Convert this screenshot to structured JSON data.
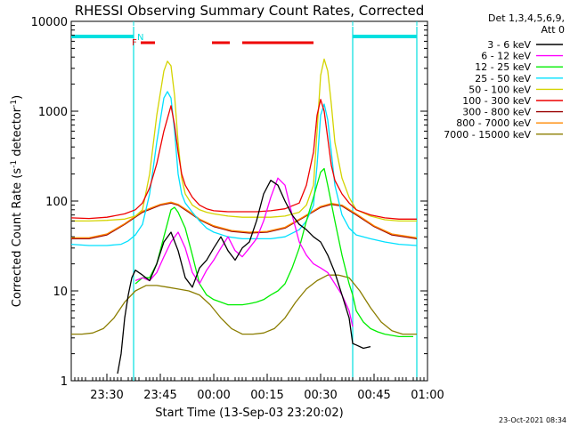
{
  "chart_data": {
    "type": "line",
    "title": "RHESSI Observing Summary Count Rates, Corrected",
    "xlabel": "Start Time (13-Sep-03 23:20:02)",
    "ylabel_parts": [
      "Corrected Count Rate (s",
      "-1",
      " detector",
      "-1",
      ")"
    ],
    "y_scale": "log",
    "xlim": [
      0,
      100
    ],
    "ylim": [
      1,
      10000
    ],
    "x_unit": "minutes after 13-Sep-03 23:20:02",
    "x_ticks": [
      {
        "pos": 10,
        "label": "23:30"
      },
      {
        "pos": 25,
        "label": "23:45"
      },
      {
        "pos": 40,
        "label": "00:00"
      },
      {
        "pos": 55,
        "label": "00:15"
      },
      {
        "pos": 70,
        "label": "00:30"
      },
      {
        "pos": 85,
        "label": "00:45"
      },
      {
        "pos": 100,
        "label": "01:00"
      }
    ],
    "y_ticks": [
      {
        "value": 1,
        "label": "1"
      },
      {
        "value": 10,
        "label": "10"
      },
      {
        "value": 100,
        "label": "100"
      },
      {
        "value": 1000,
        "label": "1000"
      },
      {
        "value": 10000,
        "label": "10000"
      }
    ],
    "legend_header": [
      "Det 1,3,4,5,6,9,",
      "Att 0"
    ],
    "legend_position": "right",
    "orbit_markers": {
      "night_label": "N",
      "flare_label": "F",
      "night_color": "#00e0e0",
      "flare_color": "#ee0000",
      "night_spans": [
        [
          0,
          17.5
        ],
        [
          79,
          97
        ]
      ],
      "flare_spans": [
        [
          19.5,
          23.5
        ],
        [
          39.5,
          44.5
        ],
        [
          48,
          68
        ]
      ],
      "boundaries": [
        17.5,
        79,
        97
      ]
    },
    "series": [
      {
        "name": "3 - 6 keV",
        "color": "#000000",
        "x": [
          13,
          14,
          15,
          16,
          17,
          18,
          20,
          22,
          24,
          26,
          28,
          30,
          32,
          34,
          36,
          38,
          40,
          42,
          44,
          46,
          48,
          50,
          52,
          54,
          56,
          58,
          60,
          62,
          64,
          66,
          68,
          70,
          72,
          74,
          76,
          78,
          79,
          80,
          82,
          84
        ],
        "y": [
          1.2,
          2,
          5,
          9,
          14,
          17,
          15,
          13,
          20,
          35,
          45,
          28,
          14,
          11,
          18,
          22,
          30,
          40,
          28,
          22,
          30,
          35,
          60,
          120,
          170,
          150,
          100,
          70,
          55,
          48,
          40,
          35,
          25,
          16,
          9,
          5,
          2.6,
          2.5,
          2.3,
          2.4
        ]
      },
      {
        "name": "6 - 12 keV",
        "color": "#ff00ff",
        "x": [
          18,
          20,
          22,
          24,
          26,
          28,
          30,
          32,
          34,
          36,
          38,
          40,
          42,
          44,
          46,
          48,
          50,
          52,
          54,
          56,
          58,
          60,
          62,
          64,
          66,
          68,
          70,
          72,
          74,
          76,
          78,
          79
        ],
        "y": [
          13,
          14,
          13,
          16,
          24,
          35,
          45,
          30,
          16,
          12,
          17,
          22,
          30,
          40,
          28,
          24,
          30,
          38,
          60,
          110,
          180,
          150,
          70,
          35,
          25,
          20,
          18,
          16,
          12,
          9,
          6,
          4
        ]
      },
      {
        "name": "12 - 25 keV",
        "color": "#00ee00",
        "x": [
          18,
          20,
          22,
          24,
          26,
          28,
          29,
          30,
          32,
          34,
          36,
          38,
          40,
          42,
          44,
          46,
          48,
          50,
          52,
          54,
          56,
          58,
          60,
          62,
          64,
          66,
          68,
          70,
          71,
          72,
          74,
          76,
          78,
          79,
          80,
          82,
          84,
          86,
          88,
          90,
          92,
          94,
          96
        ],
        "y": [
          12,
          14,
          14,
          20,
          40,
          80,
          85,
          75,
          50,
          25,
          12,
          9,
          8,
          7.5,
          7,
          7,
          7,
          7.2,
          7.5,
          8,
          9,
          10,
          12,
          18,
          30,
          60,
          110,
          210,
          230,
          150,
          60,
          25,
          12,
          9,
          6,
          4.5,
          3.8,
          3.5,
          3.3,
          3.2,
          3.1,
          3.1,
          3.1
        ]
      },
      {
        "name": "25 - 50 keV",
        "color": "#00e0ff",
        "x": [
          0,
          5,
          10,
          14,
          16,
          18,
          20,
          22,
          24,
          26,
          27,
          28,
          29,
          30,
          31,
          32,
          34,
          36,
          38,
          40,
          44,
          48,
          52,
          56,
          60,
          64,
          66,
          68,
          69,
          70,
          71,
          72,
          73,
          74,
          76,
          78,
          80,
          84,
          88,
          92,
          97
        ],
        "y": [
          33,
          32,
          32,
          33,
          36,
          42,
          55,
          120,
          450,
          1400,
          1650,
          1400,
          600,
          200,
          120,
          95,
          75,
          60,
          50,
          45,
          40,
          38,
          38,
          38,
          40,
          48,
          60,
          90,
          250,
          900,
          1200,
          800,
          350,
          150,
          70,
          50,
          42,
          38,
          35,
          33,
          32
        ]
      },
      {
        "name": "50 - 100 keV",
        "color": "#d4d400",
        "x": [
          0,
          5,
          10,
          15,
          18,
          20,
          22,
          24,
          26,
          27,
          28,
          29,
          30,
          31,
          32,
          34,
          36,
          38,
          40,
          44,
          48,
          52,
          56,
          60,
          64,
          66,
          68,
          69,
          70,
          71,
          72,
          73,
          74,
          76,
          78,
          80,
          84,
          88,
          92,
          97
        ],
        "y": [
          60,
          60,
          61,
          63,
          68,
          80,
          200,
          900,
          2800,
          3600,
          3200,
          1500,
          450,
          180,
          120,
          90,
          80,
          75,
          72,
          68,
          66,
          66,
          66,
          68,
          75,
          90,
          150,
          600,
          2500,
          3800,
          2800,
          1200,
          450,
          180,
          110,
          80,
          68,
          62,
          60,
          60
        ]
      },
      {
        "name": "100 - 300 keV",
        "color": "#ee0000",
        "x": [
          0,
          5,
          10,
          15,
          18,
          20,
          22,
          24,
          26,
          28,
          29,
          30,
          31,
          32,
          34,
          36,
          38,
          40,
          44,
          48,
          52,
          56,
          60,
          64,
          66,
          68,
          69,
          70,
          71,
          72,
          73,
          74,
          76,
          78,
          80,
          84,
          88,
          92,
          97
        ],
        "y": [
          65,
          64,
          66,
          72,
          80,
          95,
          140,
          260,
          600,
          1150,
          700,
          350,
          200,
          150,
          110,
          90,
          82,
          78,
          76,
          76,
          76,
          78,
          82,
          95,
          150,
          350,
          900,
          1350,
          1000,
          500,
          250,
          170,
          120,
          95,
          80,
          70,
          65,
          63,
          63
        ]
      },
      {
        "name": "300 - 800 keV",
        "color": "#990000",
        "x": [
          0,
          5,
          10,
          15,
          20,
          25,
          28,
          30,
          33,
          36,
          40,
          45,
          50,
          55,
          60,
          65,
          70,
          73,
          76,
          80,
          85,
          90,
          97
        ],
        "y": [
          38,
          38,
          42,
          55,
          75,
          90,
          95,
          90,
          75,
          62,
          52,
          46,
          44,
          45,
          50,
          65,
          85,
          92,
          88,
          70,
          52,
          42,
          38
        ]
      },
      {
        "name": "800 - 7000 keV",
        "color": "#ff8800",
        "x": [
          0,
          5,
          10,
          15,
          20,
          25,
          28,
          30,
          33,
          36,
          40,
          45,
          50,
          55,
          60,
          65,
          70,
          73,
          76,
          80,
          85,
          90,
          97
        ],
        "y": [
          39,
          39,
          43,
          56,
          77,
          92,
          97,
          92,
          77,
          63,
          53,
          47,
          45,
          46,
          51,
          66,
          87,
          94,
          90,
          72,
          53,
          43,
          39
        ]
      },
      {
        "name": "7000 - 15000 keV",
        "color": "#8b7d00",
        "x": [
          0,
          3,
          6,
          9,
          12,
          15,
          18,
          21,
          24,
          27,
          30,
          33,
          36,
          39,
          42,
          45,
          48,
          51,
          54,
          57,
          60,
          63,
          66,
          69,
          72,
          75,
          78,
          81,
          84,
          87,
          90,
          93,
          97
        ],
        "y": [
          3.3,
          3.3,
          3.4,
          3.8,
          5,
          7.5,
          10,
          11.5,
          11.5,
          11,
          10.5,
          10,
          9,
          7,
          5,
          3.8,
          3.3,
          3.3,
          3.4,
          3.8,
          5,
          7.5,
          10.5,
          13,
          15,
          15,
          14,
          10,
          6.5,
          4.5,
          3.6,
          3.3,
          3.3
        ]
      }
    ],
    "footer_timestamp": "23-Oct-2021 08:34"
  }
}
